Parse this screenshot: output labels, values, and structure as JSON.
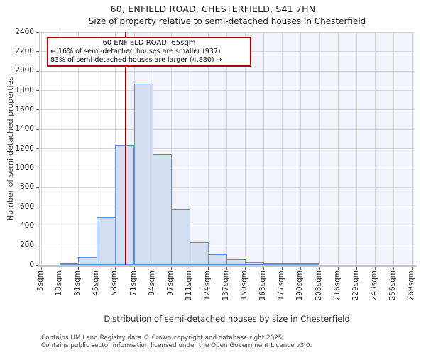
{
  "title": "60, ENFIELD ROAD, CHESTERFIELD, S41 7HN",
  "subtitle": "Size of property relative to semi-detached houses in Chesterfield",
  "annotation": {
    "line1": "60 ENFIELD ROAD: 65sqm",
    "line2": "← 16% of semi-detached houses are smaller (937)",
    "line3": "83% of semi-detached houses are larger (4,880) →"
  },
  "chart_data": {
    "type": "bar",
    "title": "60, ENFIELD ROAD, CHESTERFIELD, S41 7HN",
    "subtitle": "Size of property relative to semi-detached houses in Chesterfield",
    "xlabel": "Distribution of semi-detached houses by size in Chesterfield",
    "ylabel": "Number of semi-detached properties",
    "x_tick_labels": [
      "5sqm",
      "18sqm",
      "31sqm",
      "45sqm",
      "58sqm",
      "71sqm",
      "84sqm",
      "97sqm",
      "111sqm",
      "124sqm",
      "137sqm",
      "150sqm",
      "163sqm",
      "177sqm",
      "190sqm",
      "203sqm",
      "216sqm",
      "229sqm",
      "243sqm",
      "256sqm",
      "269sqm"
    ],
    "bin_edges_sqm": [
      5,
      18,
      31,
      45,
      58,
      71,
      84,
      97,
      111,
      124,
      137,
      150,
      163,
      177,
      190,
      203,
      216,
      229,
      243,
      256,
      269
    ],
    "values": [
      0,
      10,
      80,
      490,
      1240,
      1865,
      1140,
      570,
      235,
      110,
      55,
      30,
      10,
      5,
      5,
      0,
      0,
      0,
      0,
      0
    ],
    "ylim": [
      0,
      2400
    ],
    "ytick_step": 200,
    "grid": true,
    "legend": "none",
    "marker_value_sqm": 65,
    "marker_label": "60 ENFIELD ROAD: 65sqm"
  },
  "footer": {
    "line1": "Contains HM Land Registry data © Crown copyright and database right 2025.",
    "line2": "Contains public sector information licensed under the Open Government Licence v3.0."
  },
  "colors": {
    "bar_fill": "#d4def2",
    "bar_stroke": "#5b8bd0",
    "marker_red": "#a50000",
    "annotation_border": "#bb0000",
    "shade_right_of_marker": "#f1f4fc",
    "gridline": "#d6d6d6"
  }
}
